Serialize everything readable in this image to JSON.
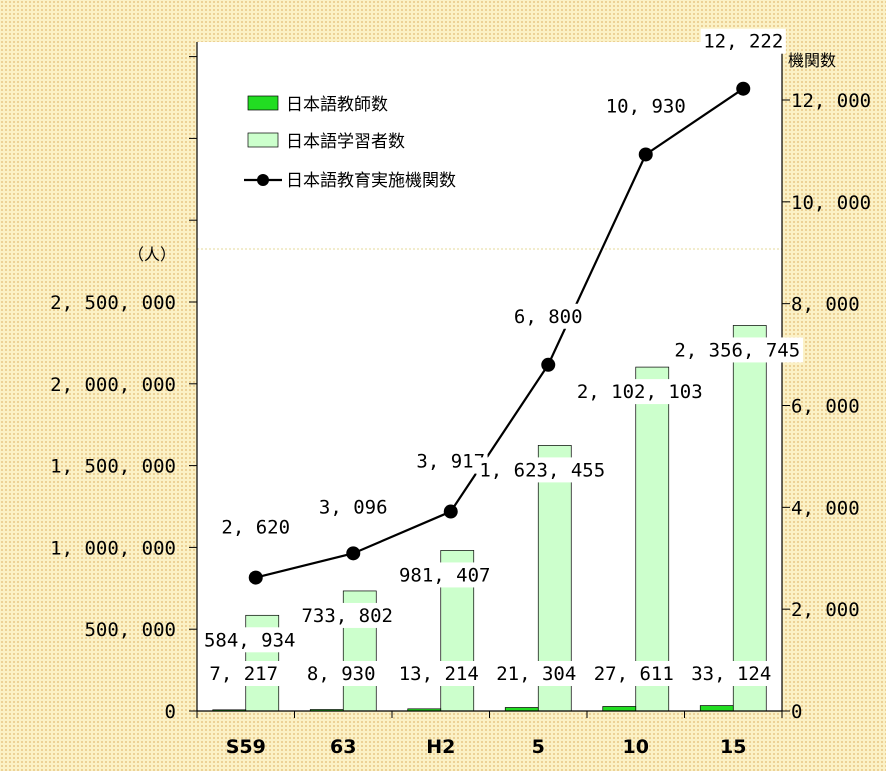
{
  "chart_data": {
    "type": "bar",
    "categories": [
      "S59",
      "63",
      "H2",
      "5",
      "10",
      "15"
    ],
    "series": [
      {
        "name": "日本語教師数",
        "kind": "bar",
        "axis": "left",
        "color": "#22dd22",
        "values": [
          7217,
          8930,
          13214,
          21304,
          27611,
          33124
        ],
        "labels": [
          "7, 217",
          "8, 930",
          "13, 214",
          "21, 304",
          "27, 611",
          "33, 124"
        ]
      },
      {
        "name": "日本語学習者数",
        "kind": "bar",
        "axis": "left",
        "color": "#ccffcc",
        "values": [
          584934,
          733802,
          981407,
          1623455,
          2102103,
          2356745
        ],
        "labels": [
          "584, 934",
          "733, 802",
          "981, 407",
          "1, 623, 455",
          "2, 102, 103",
          "2, 356, 745"
        ]
      },
      {
        "name": "日本語教育実施機関数",
        "kind": "line",
        "axis": "right",
        "color": "#000000",
        "values": [
          2620,
          3096,
          3917,
          6800,
          10930,
          12222
        ],
        "labels": [
          "2, 620",
          "3, 096",
          "3, 917",
          "6, 800",
          "10, 930",
          "12, 222"
        ]
      }
    ],
    "left_axis": {
      "unit": "（人）",
      "ylim": [
        0,
        2500000
      ],
      "ticks": [
        0,
        500000,
        1000000,
        1500000,
        2000000,
        2500000
      ],
      "tick_labels": [
        "0",
        "500, 000",
        "1, 000, 000",
        "1, 500, 000",
        "2, 000, 000",
        "2, 500, 000"
      ]
    },
    "right_axis": {
      "unit": "機関数",
      "ylim": [
        0,
        12000
      ],
      "ticks": [
        0,
        2000,
        4000,
        6000,
        8000,
        10000,
        12000
      ],
      "tick_labels": [
        "0",
        "2, 000",
        "4, 000",
        "6, 000",
        "8, 000",
        "10, 000",
        "12, 000"
      ]
    },
    "legend_position": "top-left",
    "grid": false
  }
}
